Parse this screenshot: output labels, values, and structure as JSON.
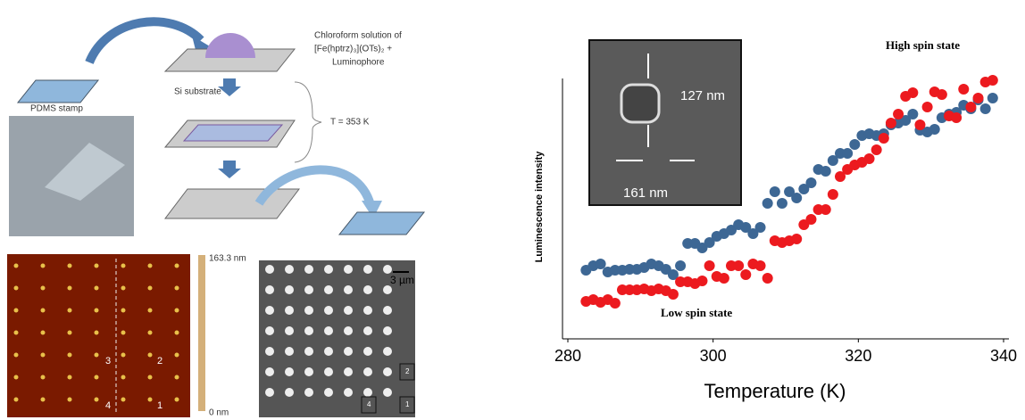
{
  "diagram": {
    "stamp_label": "PDMS stamp",
    "substrate_label": "Si substrate",
    "solution_line1": "Chloroform solution of",
    "solution_line2": "[Fe(hptrz)₃](OTs)₂ +",
    "solution_line3": "Luminophore",
    "temperature": "T = 353 K",
    "afm_max": "163.3 nm",
    "afm_min": "0 nm",
    "scale_bar": "3 µm",
    "afm_marks": [
      "3",
      "2",
      "4",
      "1"
    ],
    "fluo_marks": [
      "2",
      "4",
      "1"
    ]
  },
  "chart_data": {
    "type": "scatter",
    "xlabel": "Temperature (K)",
    "ylabel": "Luminescence intensity",
    "annotations": [
      "High spin state",
      "Low spin state"
    ],
    "inset_labels": [
      "127 nm",
      "161 nm"
    ],
    "xlim": [
      280,
      340
    ],
    "xticks": [
      280,
      300,
      320,
      340
    ],
    "ylim": [
      0,
      290
    ],
    "x": [
      282.5,
      283.5,
      284.5,
      285.5,
      286.5,
      287.5,
      288.5,
      289.5,
      290.5,
      291.5,
      292.5,
      293.5,
      294.5,
      295.5,
      296.5,
      297.5,
      298.5,
      299.5,
      300.5,
      301.5,
      302.5,
      303.5,
      304.5,
      305.5,
      306.5,
      307.5,
      308.5,
      309.5,
      310.5,
      311.5,
      312.5,
      313.5,
      314.5,
      315.5,
      316.5,
      317.5,
      318.5,
      319.5,
      320.5,
      321.5,
      322.5,
      323.5,
      324.5,
      325.5,
      326.5,
      327.5,
      328.5,
      329.5,
      330.5,
      331.5,
      332.5,
      333.5,
      334.5,
      335.5,
      336.5,
      337.5,
      338.5
    ],
    "series": [
      {
        "color": "#3d6794",
        "values": [
          77,
          82,
          84,
          75,
          77,
          77,
          78,
          78,
          80,
          84,
          82,
          78,
          72,
          82,
          107,
          107,
          102,
          108,
          115,
          118,
          122,
          128,
          125,
          118,
          125,
          152,
          165,
          152,
          165,
          158,
          168,
          175,
          190,
          188,
          200,
          208,
          208,
          218,
          228,
          230,
          228,
          230,
          240,
          242,
          245,
          252,
          234,
          232,
          235,
          248,
          252,
          254,
          262,
          258,
          268,
          258,
          270
        ]
      },
      {
        "color": "#ec1a1f",
        "values": [
          42,
          44,
          41,
          44,
          40,
          55,
          55,
          55,
          56,
          54,
          56,
          54,
          50,
          64,
          64,
          62,
          65,
          82,
          70,
          68,
          82,
          82,
          72,
          84,
          82,
          68,
          110,
          108,
          110,
          112,
          128,
          134,
          145,
          145,
          162,
          182,
          190,
          195,
          198,
          202,
          212,
          225,
          242,
          252,
          272,
          276,
          240,
          260,
          277,
          274,
          250,
          248,
          280,
          260,
          270,
          288,
          290
        ]
      }
    ]
  }
}
